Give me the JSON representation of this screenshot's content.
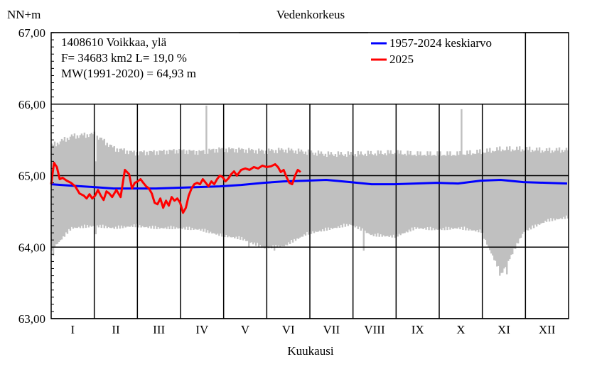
{
  "chart_data": {
    "type": "line",
    "title": "Vedenkorkeus",
    "ylabel": "NN+m",
    "xlabel": "Kuukausi",
    "ylim": [
      63.0,
      67.0
    ],
    "yticks": [
      "63,00",
      "64,00",
      "65,00",
      "66,00",
      "67,00"
    ],
    "ytick_values": [
      63,
      64,
      65,
      66,
      67
    ],
    "months": [
      "I",
      "II",
      "III",
      "IV",
      "V",
      "VI",
      "VII",
      "VIII",
      "IX",
      "X",
      "XI",
      "XII"
    ],
    "info_lines": [
      "1408610 Voikkaa, ylä",
      "F=  34683 km2 L=  19,0 %",
      "MW(1991-2020) = 64,93 m"
    ],
    "legend": [
      {
        "label": "1957-2024 keskiarvo",
        "color": "#0000ff"
      },
      {
        "label": "2025",
        "color": "#ff0000"
      }
    ],
    "colors": {
      "mean": "#0000ff",
      "current": "#ff0000",
      "range": "#c0c0c0",
      "grid": "#000000"
    },
    "range_band": {
      "name": "min-max",
      "day": [
        1,
        15,
        31,
        45,
        59,
        75,
        90,
        105,
        120,
        135,
        151,
        165,
        181,
        195,
        212,
        227,
        243,
        258,
        273,
        288,
        304,
        318,
        334,
        350,
        365
      ],
      "upper": [
        65.42,
        65.55,
        65.58,
        65.38,
        65.32,
        65.33,
        65.35,
        65.33,
        65.37,
        65.36,
        65.34,
        65.36,
        65.33,
        65.3,
        65.3,
        65.31,
        65.32,
        65.3,
        65.3,
        65.3,
        65.33,
        65.37,
        65.37,
        65.35,
        65.36
      ],
      "lower": [
        64.0,
        64.3,
        64.33,
        64.3,
        64.33,
        64.3,
        64.3,
        64.28,
        64.2,
        64.15,
        64.02,
        64.05,
        64.22,
        64.28,
        64.35,
        64.2,
        64.18,
        64.3,
        64.28,
        64.3,
        64.25,
        63.65,
        64.25,
        64.4,
        64.45
      ],
      "spikes": [
        {
          "day": 2,
          "lower": 63.88
        },
        {
          "day": 32,
          "upper": 65.2,
          "lower": 64.18
        },
        {
          "day": 110,
          "upper": 65.98
        },
        {
          "day": 140,
          "lower": 64.0
        },
        {
          "day": 158,
          "lower": 63.95
        },
        {
          "day": 221,
          "lower": 63.95
        },
        {
          "day": 290,
          "upper": 65.93
        },
        {
          "day": 317,
          "lower": 63.6
        },
        {
          "day": 322,
          "lower": 63.62
        }
      ]
    },
    "series": [
      {
        "name": "1957-2024 keskiarvo",
        "color": "#0000ff",
        "day": [
          1,
          15,
          31,
          45,
          59,
          75,
          90,
          105,
          120,
          135,
          151,
          165,
          181,
          195,
          212,
          227,
          243,
          258,
          273,
          288,
          304,
          318,
          334,
          350,
          365
        ],
        "values": [
          64.88,
          64.86,
          64.84,
          64.82,
          64.82,
          64.82,
          64.83,
          64.84,
          64.85,
          64.87,
          64.9,
          64.92,
          64.93,
          64.94,
          64.91,
          64.88,
          64.88,
          64.89,
          64.9,
          64.89,
          64.93,
          64.94,
          64.91,
          64.9,
          64.89
        ]
      },
      {
        "name": "2025",
        "color": "#ff0000",
        "day": [
          1,
          3,
          5,
          7,
          9,
          12,
          15,
          18,
          21,
          24,
          26,
          28,
          30,
          32,
          34,
          36,
          38,
          40,
          42,
          44,
          47,
          50,
          53,
          56,
          58,
          60,
          62,
          64,
          66,
          68,
          70,
          72,
          74,
          76,
          78,
          80,
          82,
          84,
          86,
          88,
          90,
          92,
          94,
          96,
          98,
          100,
          102,
          104,
          106,
          108,
          110,
          112,
          114,
          116,
          118,
          120,
          122,
          124,
          126,
          128,
          130,
          132,
          135,
          138,
          141,
          144,
          147,
          150,
          153,
          156,
          159,
          161,
          163,
          165,
          167,
          169,
          171,
          173,
          175,
          177
        ],
        "values": [
          64.88,
          65.18,
          65.12,
          64.95,
          64.97,
          64.93,
          64.9,
          64.85,
          64.75,
          64.72,
          64.68,
          64.74,
          64.68,
          64.72,
          64.8,
          64.72,
          64.66,
          64.78,
          64.75,
          64.7,
          64.8,
          64.7,
          65.08,
          65.02,
          64.82,
          64.9,
          64.92,
          64.95,
          64.9,
          64.85,
          64.82,
          64.75,
          64.62,
          64.6,
          64.68,
          64.55,
          64.65,
          64.58,
          64.7,
          64.65,
          64.68,
          64.62,
          64.48,
          64.55,
          64.72,
          64.82,
          64.88,
          64.9,
          64.88,
          64.95,
          64.9,
          64.85,
          64.92,
          64.88,
          64.95,
          65.0,
          64.98,
          64.92,
          64.96,
          65.02,
          65.06,
          65.0,
          65.08,
          65.1,
          65.08,
          65.12,
          65.1,
          65.14,
          65.12,
          65.13,
          65.16,
          65.12,
          65.05,
          65.08,
          64.98,
          64.9,
          64.88,
          65.0,
          65.08,
          65.05
        ]
      }
    ]
  }
}
